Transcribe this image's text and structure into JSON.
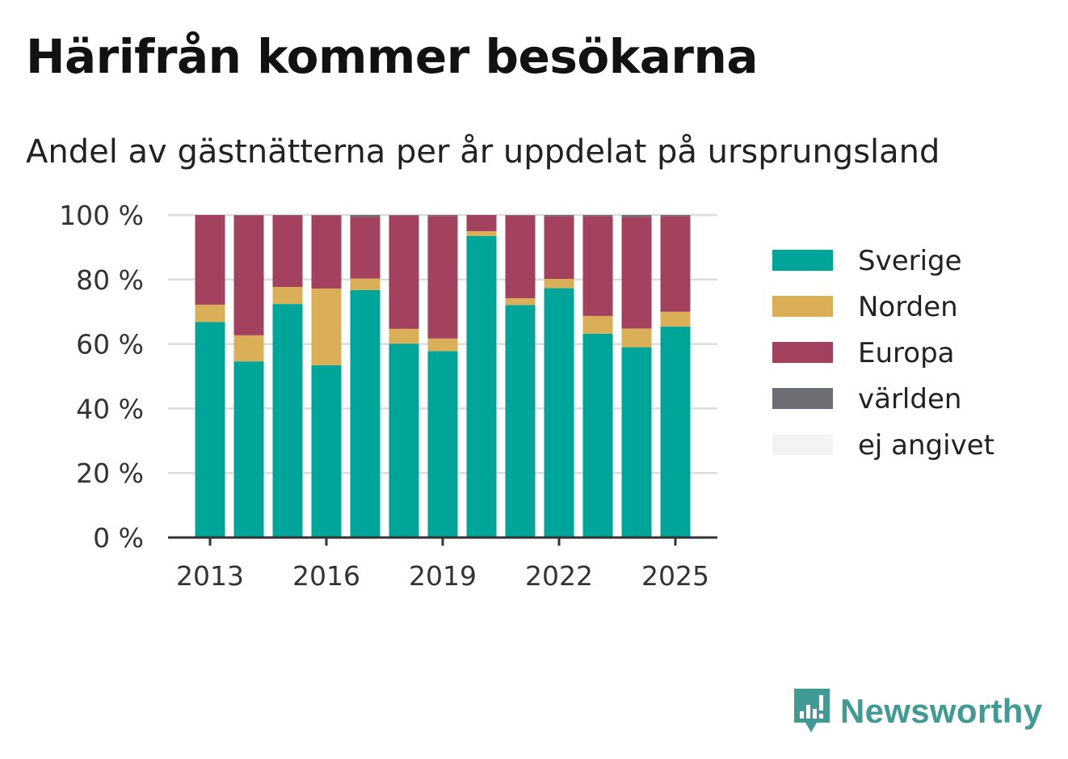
{
  "header": {
    "title": "Härifrån kommer besökarna",
    "subtitle": "Andel av gästnätterna per år uppdelat på ursprungsland"
  },
  "brand": {
    "name": "Newsworthy",
    "icon": "newsworthy-logo-icon",
    "color": "#3f9b93"
  },
  "chart_data": {
    "type": "bar",
    "stacked": true,
    "categories": [
      "2013",
      "2014",
      "2015",
      "2016",
      "2017",
      "2018",
      "2019",
      "2020",
      "2021",
      "2022",
      "2023",
      "2024",
      "2025"
    ],
    "x_tick_labels": [
      "2013",
      "2016",
      "2019",
      "2022",
      "2025"
    ],
    "y_tick_labels": [
      "0 %",
      "20 %",
      "40 %",
      "60 %",
      "80 %",
      "100 %"
    ],
    "ylim": [
      0,
      100
    ],
    "grid": true,
    "legend_position": "right",
    "series": [
      {
        "name": "Sverige",
        "color": "#00a59a",
        "values": [
          66.8,
          54.6,
          72.4,
          53.4,
          76.7,
          60.1,
          57.8,
          93.5,
          72.1,
          77.3,
          63.2,
          59.0,
          65.4
        ]
      },
      {
        "name": "Norden",
        "color": "#dbaf58",
        "values": [
          5.4,
          8.1,
          5.3,
          23.8,
          3.6,
          4.6,
          3.9,
          1.5,
          2.1,
          2.9,
          5.5,
          5.8,
          4.6
        ]
      },
      {
        "name": "Europa",
        "color": "#a3415f",
        "values": [
          27.8,
          37.1,
          22.2,
          22.6,
          19.1,
          35.1,
          38.0,
          5.0,
          25.6,
          19.4,
          31.0,
          34.6,
          29.7
        ]
      },
      {
        "name": "världen",
        "color": "#6d6e74",
        "values": [
          0.0,
          0.2,
          0.1,
          0.2,
          0.6,
          0.2,
          0.3,
          0.0,
          0.2,
          0.4,
          0.3,
          0.6,
          0.3
        ]
      },
      {
        "name": "ej angivet",
        "color": "#f3f3f1",
        "values": [
          0,
          0,
          0,
          0,
          0,
          0,
          0,
          0,
          0,
          0,
          0,
          0,
          0
        ]
      }
    ]
  }
}
